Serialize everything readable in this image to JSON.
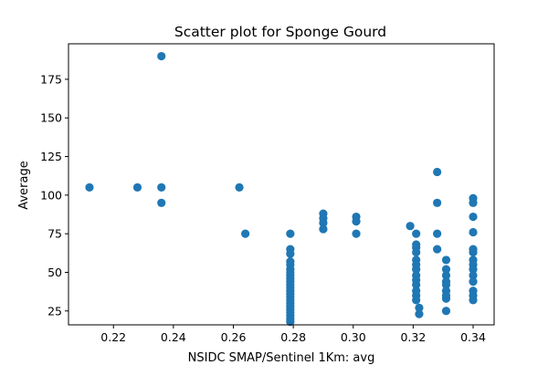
{
  "chart_data": {
    "type": "scatter",
    "title": "Scatter plot for Sponge Gourd",
    "xlabel": "NSIDC SMAP/Sentinel 1Km: avg",
    "ylabel": "Average",
    "xlim": [
      0.205,
      0.347
    ],
    "ylim": [
      16,
      198
    ],
    "x_ticks": [
      0.22,
      0.24,
      0.26,
      0.28,
      0.3,
      0.32,
      0.34
    ],
    "x_tick_labels": [
      "0.22",
      "0.24",
      "0.26",
      "0.28",
      "0.30",
      "0.32",
      "0.34"
    ],
    "y_ticks": [
      25,
      50,
      75,
      100,
      125,
      150,
      175
    ],
    "y_tick_labels": [
      "25",
      "50",
      "75",
      "100",
      "125",
      "150",
      "175"
    ],
    "grid": false,
    "marker_color": "#1f77b4",
    "points": [
      [
        0.212,
        105
      ],
      [
        0.228,
        105
      ],
      [
        0.236,
        190
      ],
      [
        0.236,
        105
      ],
      [
        0.236,
        95
      ],
      [
        0.262,
        105
      ],
      [
        0.264,
        75
      ],
      [
        0.279,
        75
      ],
      [
        0.279,
        65
      ],
      [
        0.279,
        62
      ],
      [
        0.279,
        57
      ],
      [
        0.279,
        55
      ],
      [
        0.279,
        52
      ],
      [
        0.279,
        50
      ],
      [
        0.279,
        48
      ],
      [
        0.279,
        46
      ],
      [
        0.279,
        44
      ],
      [
        0.279,
        42
      ],
      [
        0.279,
        40
      ],
      [
        0.279,
        38
      ],
      [
        0.279,
        36
      ],
      [
        0.279,
        34
      ],
      [
        0.279,
        32
      ],
      [
        0.279,
        30
      ],
      [
        0.279,
        28
      ],
      [
        0.279,
        26
      ],
      [
        0.279,
        24
      ],
      [
        0.279,
        22
      ],
      [
        0.279,
        20
      ],
      [
        0.279,
        18
      ],
      [
        0.29,
        88
      ],
      [
        0.29,
        85
      ],
      [
        0.29,
        82
      ],
      [
        0.29,
        78
      ],
      [
        0.301,
        86
      ],
      [
        0.301,
        83
      ],
      [
        0.301,
        75
      ],
      [
        0.319,
        80
      ],
      [
        0.321,
        75
      ],
      [
        0.321,
        68
      ],
      [
        0.321,
        66
      ],
      [
        0.321,
        63
      ],
      [
        0.321,
        58
      ],
      [
        0.321,
        55
      ],
      [
        0.321,
        52
      ],
      [
        0.321,
        48
      ],
      [
        0.321,
        45
      ],
      [
        0.321,
        42
      ],
      [
        0.321,
        38
      ],
      [
        0.321,
        35
      ],
      [
        0.321,
        32
      ],
      [
        0.322,
        27
      ],
      [
        0.322,
        23
      ],
      [
        0.328,
        115
      ],
      [
        0.328,
        95
      ],
      [
        0.328,
        75
      ],
      [
        0.328,
        65
      ],
      [
        0.331,
        58
      ],
      [
        0.331,
        52
      ],
      [
        0.331,
        48
      ],
      [
        0.331,
        44
      ],
      [
        0.331,
        42
      ],
      [
        0.331,
        38
      ],
      [
        0.331,
        35
      ],
      [
        0.331,
        33
      ],
      [
        0.331,
        25
      ],
      [
        0.34,
        98
      ],
      [
        0.34,
        95
      ],
      [
        0.34,
        86
      ],
      [
        0.34,
        76
      ],
      [
        0.34,
        65
      ],
      [
        0.34,
        63
      ],
      [
        0.34,
        58
      ],
      [
        0.34,
        55
      ],
      [
        0.34,
        52
      ],
      [
        0.34,
        48
      ],
      [
        0.34,
        44
      ],
      [
        0.34,
        38
      ],
      [
        0.34,
        35
      ],
      [
        0.34,
        32
      ]
    ]
  }
}
